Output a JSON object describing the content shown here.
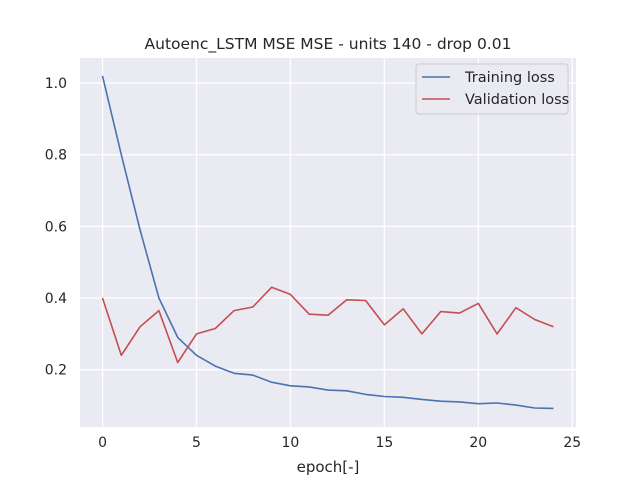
{
  "chart_data": {
    "type": "line",
    "title": "Autoenc_LSTM MSE MSE - units 140 - drop 0.01",
    "xlabel": "epoch[-]",
    "ylabel": "",
    "x": [
      0,
      1,
      2,
      3,
      4,
      5,
      6,
      7,
      8,
      9,
      10,
      11,
      12,
      13,
      14,
      15,
      16,
      17,
      18,
      19,
      20,
      21,
      22,
      23,
      24
    ],
    "xlim": [
      -1.2,
      25.2
    ],
    "ylim": [
      0.04,
      1.07
    ],
    "xticks": [
      0,
      5,
      10,
      15,
      20,
      25
    ],
    "yticks": [
      0.2,
      0.4,
      0.6,
      0.8,
      1.0
    ],
    "xtick_labels": [
      "0",
      "5",
      "10",
      "15",
      "20",
      "25"
    ],
    "ytick_labels": [
      "0.2",
      "0.4",
      "0.6",
      "0.8",
      "1.0"
    ],
    "grid": true,
    "legend_position": "top-right",
    "series": [
      {
        "name": "Training loss",
        "color": "#4c72b0",
        "values": [
          1.02,
          0.8,
          0.59,
          0.4,
          0.29,
          0.24,
          0.21,
          0.19,
          0.185,
          0.165,
          0.155,
          0.152,
          0.143,
          0.141,
          0.131,
          0.125,
          0.123,
          0.117,
          0.112,
          0.11,
          0.105,
          0.107,
          0.101,
          0.093,
          0.092
        ]
      },
      {
        "name": "Validation loss",
        "color": "#c44e52",
        "values": [
          0.4,
          0.24,
          0.32,
          0.365,
          0.22,
          0.3,
          0.315,
          0.365,
          0.375,
          0.43,
          0.41,
          0.355,
          0.352,
          0.395,
          0.393,
          0.325,
          0.37,
          0.3,
          0.362,
          0.358,
          0.385,
          0.3,
          0.373,
          0.34,
          0.32
        ]
      }
    ]
  }
}
